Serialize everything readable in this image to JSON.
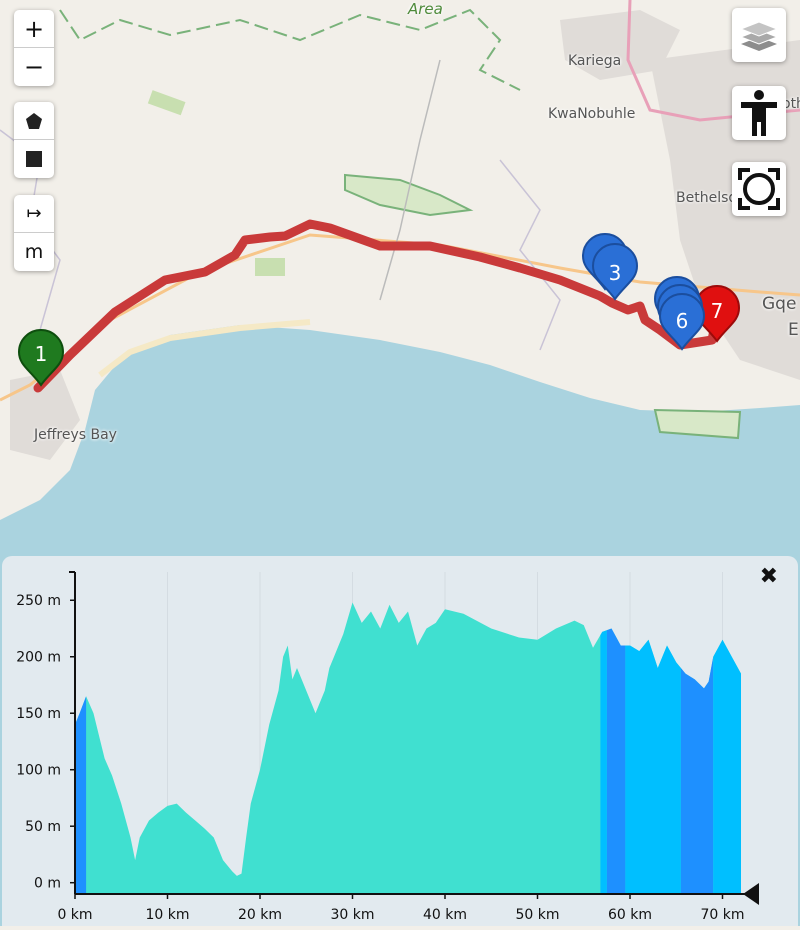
{
  "map": {
    "place_labels": [
      "Area",
      "Kariega",
      "KwaNobuhle",
      "Bethelsd",
      "Gqe",
      "E",
      "Jeffreys Bay",
      "oth"
    ],
    "colors": {
      "route": "#c93a3a",
      "sea": "#aad3df",
      "land": "#f2efe9"
    },
    "markers": [
      {
        "label": "1",
        "color": "#1f7a1f"
      },
      {
        "label": "3",
        "color": "#2a6fd6"
      },
      {
        "label": "6",
        "color": "#2a6fd6"
      },
      {
        "label": "7",
        "color": "#e01010"
      }
    ]
  },
  "controls": {
    "zoom_in": "+",
    "zoom_out": "−",
    "draw_polygon_icon": "pentagon-icon",
    "draw_rect_icon": "square-icon",
    "measure_icon": "↦",
    "unit_label": "m",
    "layers_icon": "layers-icon",
    "accessibility_icon": "accessibility-icon",
    "fullscreen_icon": "fullscreen-icon"
  },
  "profile": {
    "close_label": "✖",
    "colors": {
      "main": "#40e0d0",
      "deep": "#1e90ff",
      "mid": "#00bfff"
    }
  },
  "chart_data": {
    "type": "area",
    "title": "",
    "xlabel": "",
    "ylabel": "",
    "xlim": [
      0,
      72
    ],
    "ylim": [
      -10,
      275
    ],
    "x_ticks": [
      "0 km",
      "10 km",
      "20 km",
      "30 km",
      "40 km",
      "50 km",
      "60 km",
      "70 km"
    ],
    "y_ticks": [
      "0 m",
      "50 m",
      "100 m",
      "150 m",
      "200 m",
      "250 m"
    ],
    "x": [
      0,
      0.5,
      1.2,
      2,
      2.6,
      3.2,
      4,
      5,
      6,
      6.5,
      7,
      8,
      9,
      10,
      11,
      12,
      13,
      14,
      15,
      16,
      17,
      17.5,
      18,
      18.5,
      19,
      20,
      21,
      22,
      22.5,
      23,
      23.5,
      24,
      25,
      26,
      27,
      27.5,
      28,
      29,
      30,
      31,
      32,
      33,
      34,
      35,
      36,
      37,
      38,
      39,
      40,
      42,
      45,
      48,
      50,
      52,
      54,
      55,
      56,
      57,
      58,
      59,
      60,
      61,
      62,
      63,
      64,
      65,
      66,
      67,
      68,
      68.5,
      69,
      70,
      71,
      72
    ],
    "y": [
      140,
      150,
      165,
      150,
      130,
      110,
      95,
      70,
      40,
      20,
      40,
      55,
      62,
      68,
      70,
      62,
      55,
      48,
      40,
      20,
      10,
      6,
      8,
      40,
      70,
      100,
      140,
      170,
      200,
      210,
      180,
      190,
      170,
      150,
      170,
      190,
      200,
      220,
      248,
      230,
      240,
      225,
      246,
      230,
      240,
      210,
      225,
      230,
      242,
      238,
      225,
      217,
      215,
      225,
      232,
      228,
      208,
      222,
      225,
      210,
      210,
      205,
      215,
      190,
      210,
      195,
      185,
      180,
      172,
      178,
      200,
      215,
      200,
      185
    ],
    "colors": [
      "#40e0d0",
      "#00bfff",
      "#1e90ff"
    ]
  }
}
